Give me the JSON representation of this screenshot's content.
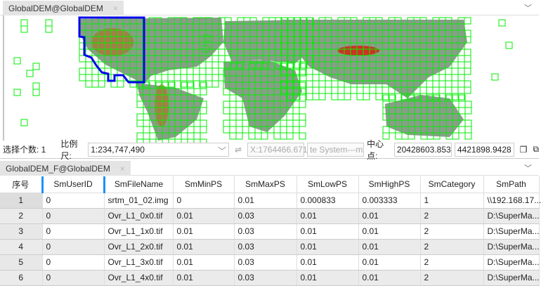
{
  "map_tab": {
    "title": "GlobalDEM@GlobalDEM",
    "close": "×"
  },
  "status": {
    "selected_label": "选择个数: 1",
    "scale_label": "比例尺:",
    "scale_value": "1:234,747,490",
    "swap_icon": "⇌",
    "coord_x": "X:1764466.671",
    "coord_sys": "te System---m",
    "center_label": "中心点:",
    "center_x": "20428603.853",
    "center_y": "4421898.9428"
  },
  "table_tab": {
    "title": "GlobalDEM_F@GlobalDEM",
    "close": "×"
  },
  "table": {
    "columns": [
      "序号",
      "SmUserID",
      "SmFileName",
      "SmMinPS",
      "SmMaxPS",
      "SmLowPS",
      "SmHighPS",
      "SmCategory",
      "SmPath"
    ],
    "rows": [
      [
        "1",
        "0",
        "srtm_01_02.img",
        "0",
        "0.01",
        "0.000833",
        "0.003333",
        "1",
        "\\\\192.168.17..."
      ],
      [
        "2",
        "0",
        "Ovr_L1_0x0.tif",
        "0.01",
        "0.03",
        "0.01",
        "0.01",
        "2",
        "D:\\SuperMa..."
      ],
      [
        "3",
        "0",
        "Ovr_L1_1x0.tif",
        "0.01",
        "0.03",
        "0.01",
        "0.01",
        "2",
        "D:\\SuperMa..."
      ],
      [
        "4",
        "0",
        "Ovr_L1_2x0.tif",
        "0.01",
        "0.03",
        "0.01",
        "0.01",
        "2",
        "D:\\SuperMa..."
      ],
      [
        "5",
        "0",
        "Ovr_L1_3x0.tif",
        "0.01",
        "0.03",
        "0.01",
        "0.01",
        "2",
        "D:\\SuperMa..."
      ],
      [
        "6",
        "0",
        "Ovr_L1_4x0.tif",
        "0.01",
        "0.03",
        "0.01",
        "0.01",
        "2",
        "D:\\SuperMa..."
      ]
    ]
  },
  "colors": {
    "grid": "#00ee00",
    "selection": "#0000ee",
    "land": "#8c9c8c"
  }
}
